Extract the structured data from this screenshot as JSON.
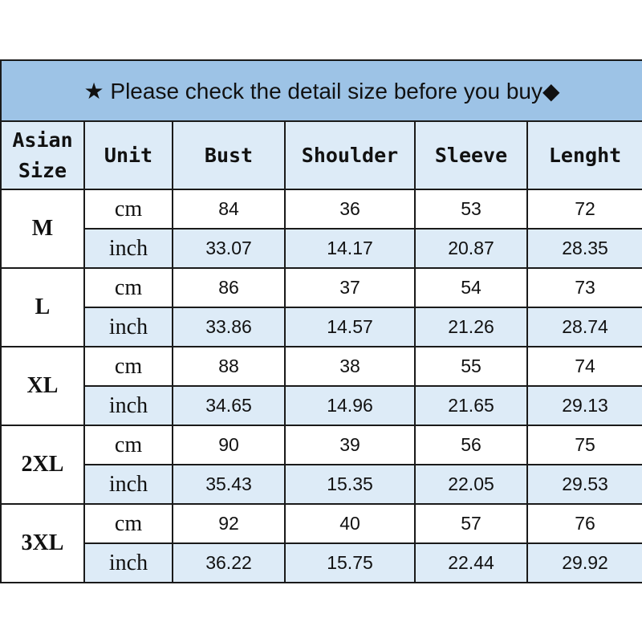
{
  "title": "★ Please check the detail size before you buy◆",
  "headers": [
    "Asian\nSize",
    "Unit",
    "Bust",
    "Shoulder",
    "Sleeve",
    "Lenght"
  ],
  "rows": [
    {
      "size": "M",
      "cm": {
        "unit": "cm",
        "values": [
          "84",
          "36",
          "53",
          "72"
        ]
      },
      "inch": {
        "unit": "inch",
        "values": [
          "33.07",
          "14.17",
          "20.87",
          "28.35"
        ]
      }
    },
    {
      "size": "L",
      "cm": {
        "unit": "cm",
        "values": [
          "86",
          "37",
          "54",
          "73"
        ]
      },
      "inch": {
        "unit": "inch",
        "values": [
          "33.86",
          "14.57",
          "21.26",
          "28.74"
        ]
      }
    },
    {
      "size": "XL",
      "cm": {
        "unit": "cm",
        "values": [
          "88",
          "38",
          "55",
          "74"
        ]
      },
      "inch": {
        "unit": "inch",
        "values": [
          "34.65",
          "14.96",
          "21.65",
          "29.13"
        ]
      }
    },
    {
      "size": "2XL",
      "cm": {
        "unit": "cm",
        "values": [
          "90",
          "39",
          "56",
          "75"
        ]
      },
      "inch": {
        "unit": "inch",
        "values": [
          "35.43",
          "15.35",
          "22.05",
          "29.53"
        ]
      }
    },
    {
      "size": "3XL",
      "cm": {
        "unit": "cm",
        "values": [
          "92",
          "40",
          "57",
          "76"
        ]
      },
      "inch": {
        "unit": "inch",
        "values": [
          "36.22",
          "15.75",
          "22.44",
          "29.92"
        ]
      }
    }
  ],
  "colors": {
    "title_bg": "#9dc3e6",
    "header_bg": "#ddebf7",
    "inch_row_bg": "#ddebf7"
  }
}
